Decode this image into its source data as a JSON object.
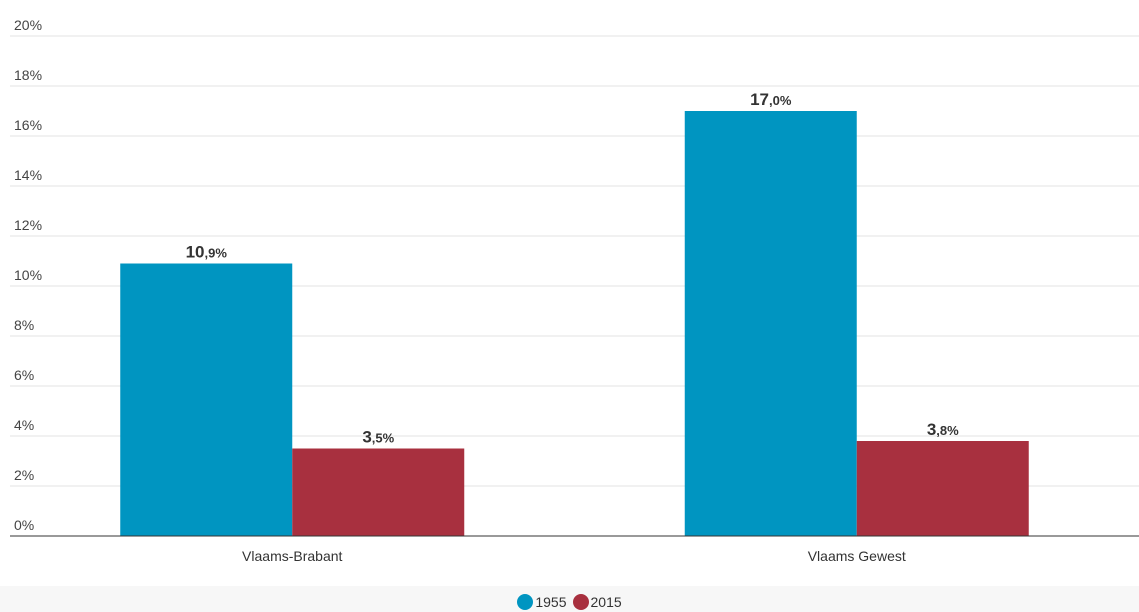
{
  "chart_data": {
    "type": "bar",
    "categories": [
      "Vlaams-Brabant",
      "Vlaams Gewest"
    ],
    "series": [
      {
        "name": "1955",
        "values": [
          10.9,
          17.0
        ],
        "color": "#0095c1"
      },
      {
        "name": "2015",
        "values": [
          3.5,
          3.8
        ],
        "color": "#a8303f"
      }
    ],
    "value_labels": [
      {
        "integer": "10",
        "decimal": ",9%"
      },
      {
        "integer": "17",
        "decimal": ",0%"
      },
      {
        "integer": "3",
        "decimal": ",5%"
      },
      {
        "integer": "3",
        "decimal": ",8%"
      }
    ],
    "yticks": [
      "0%",
      "2%",
      "4%",
      "6%",
      "8%",
      "10%",
      "12%",
      "14%",
      "16%",
      "18%",
      "20%"
    ],
    "ylim": [
      0,
      20
    ],
    "grid": true,
    "legend_position": "bottom-center",
    "title": "",
    "xlabel": "",
    "ylabel": ""
  }
}
